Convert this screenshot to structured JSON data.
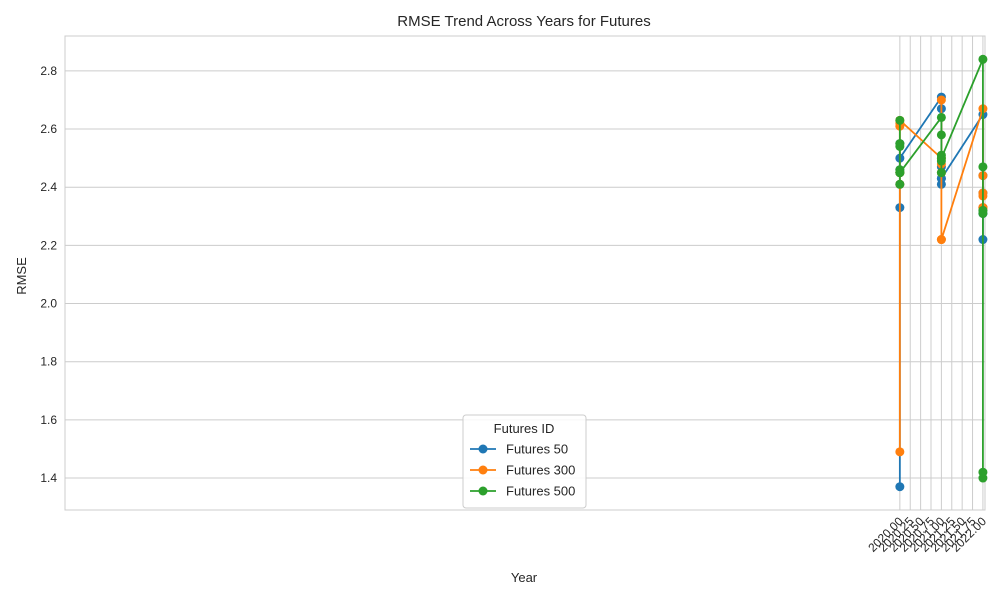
{
  "chart_data": {
    "type": "line",
    "title": "RMSE Trend Across Years for Futures",
    "xlabel": "Year",
    "ylabel": "RMSE",
    "xlim": [
      1999.9,
      2022.05
    ],
    "ylim": [
      1.29,
      2.92
    ],
    "x_ticks": [
      2020.0,
      2020.25,
      2020.5,
      2020.75,
      2021.0,
      2021.25,
      2021.5,
      2021.75,
      2022.0
    ],
    "x_tick_labels": [
      "2020.00",
      "2020.25",
      "2020.50",
      "2020.75",
      "2021.00",
      "2021.25",
      "2021.50",
      "2021.75",
      "2022.00"
    ],
    "y_ticks": [
      1.4,
      1.6,
      1.8,
      2.0,
      2.2,
      2.4,
      2.6,
      2.8
    ],
    "y_tick_labels": [
      "1.4",
      "1.6",
      "1.8",
      "2.0",
      "2.2",
      "2.4",
      "2.6",
      "2.8"
    ],
    "grid": true,
    "legend": {
      "title": "Futures ID",
      "placement": "lower-center"
    },
    "series": [
      {
        "name": "Futures 50",
        "color": "#1f77b4",
        "x": [
          2020,
          2020,
          2020,
          2020,
          2020,
          2020,
          2020,
          2021,
          2021,
          2021,
          2021,
          2021,
          2021,
          2022,
          2022,
          2022,
          2022,
          2022,
          2022,
          2022
        ],
        "y": [
          2.33,
          2.55,
          2.41,
          1.37,
          2.46,
          2.45,
          2.5,
          2.71,
          2.67,
          2.41,
          2.43,
          2.47,
          2.43,
          2.65,
          2.44,
          2.31,
          2.33,
          2.38,
          2.31,
          2.22
        ]
      },
      {
        "name": "Futures 300",
        "color": "#ff7f0e",
        "x": [
          2020,
          2020,
          2020,
          2020,
          2020,
          2020,
          2020,
          2021,
          2021,
          2021,
          2021,
          2021,
          2021,
          2022,
          2022,
          2022,
          2022,
          2022,
          2022,
          2022
        ],
        "y": [
          2.61,
          2.45,
          2.41,
          1.49,
          2.45,
          2.62,
          2.63,
          2.7,
          2.48,
          2.45,
          2.5,
          2.22,
          2.22,
          2.67,
          2.44,
          2.38,
          2.37,
          2.33,
          2.33,
          2.33
        ],
        "connect_order": [
          0,
          1,
          2,
          3,
          4,
          5,
          6,
          10,
          11,
          7,
          8,
          9,
          12,
          13,
          14,
          15,
          16,
          17,
          18,
          19
        ]
      },
      {
        "name": "Futures 500",
        "color": "#2ca02c",
        "x": [
          2020,
          2020,
          2020,
          2020,
          2020,
          2020,
          2020,
          2021,
          2021,
          2021,
          2021,
          2021,
          2021,
          2022,
          2022,
          2022,
          2022,
          2022,
          2022,
          2022
        ],
        "y": [
          2.55,
          2.63,
          2.54,
          2.41,
          2.46,
          2.45,
          2.45,
          2.64,
          2.58,
          2.51,
          2.49,
          2.45,
          2.5,
          2.84,
          2.47,
          2.31,
          1.42,
          1.4,
          2.32,
          2.32
        ]
      }
    ]
  }
}
